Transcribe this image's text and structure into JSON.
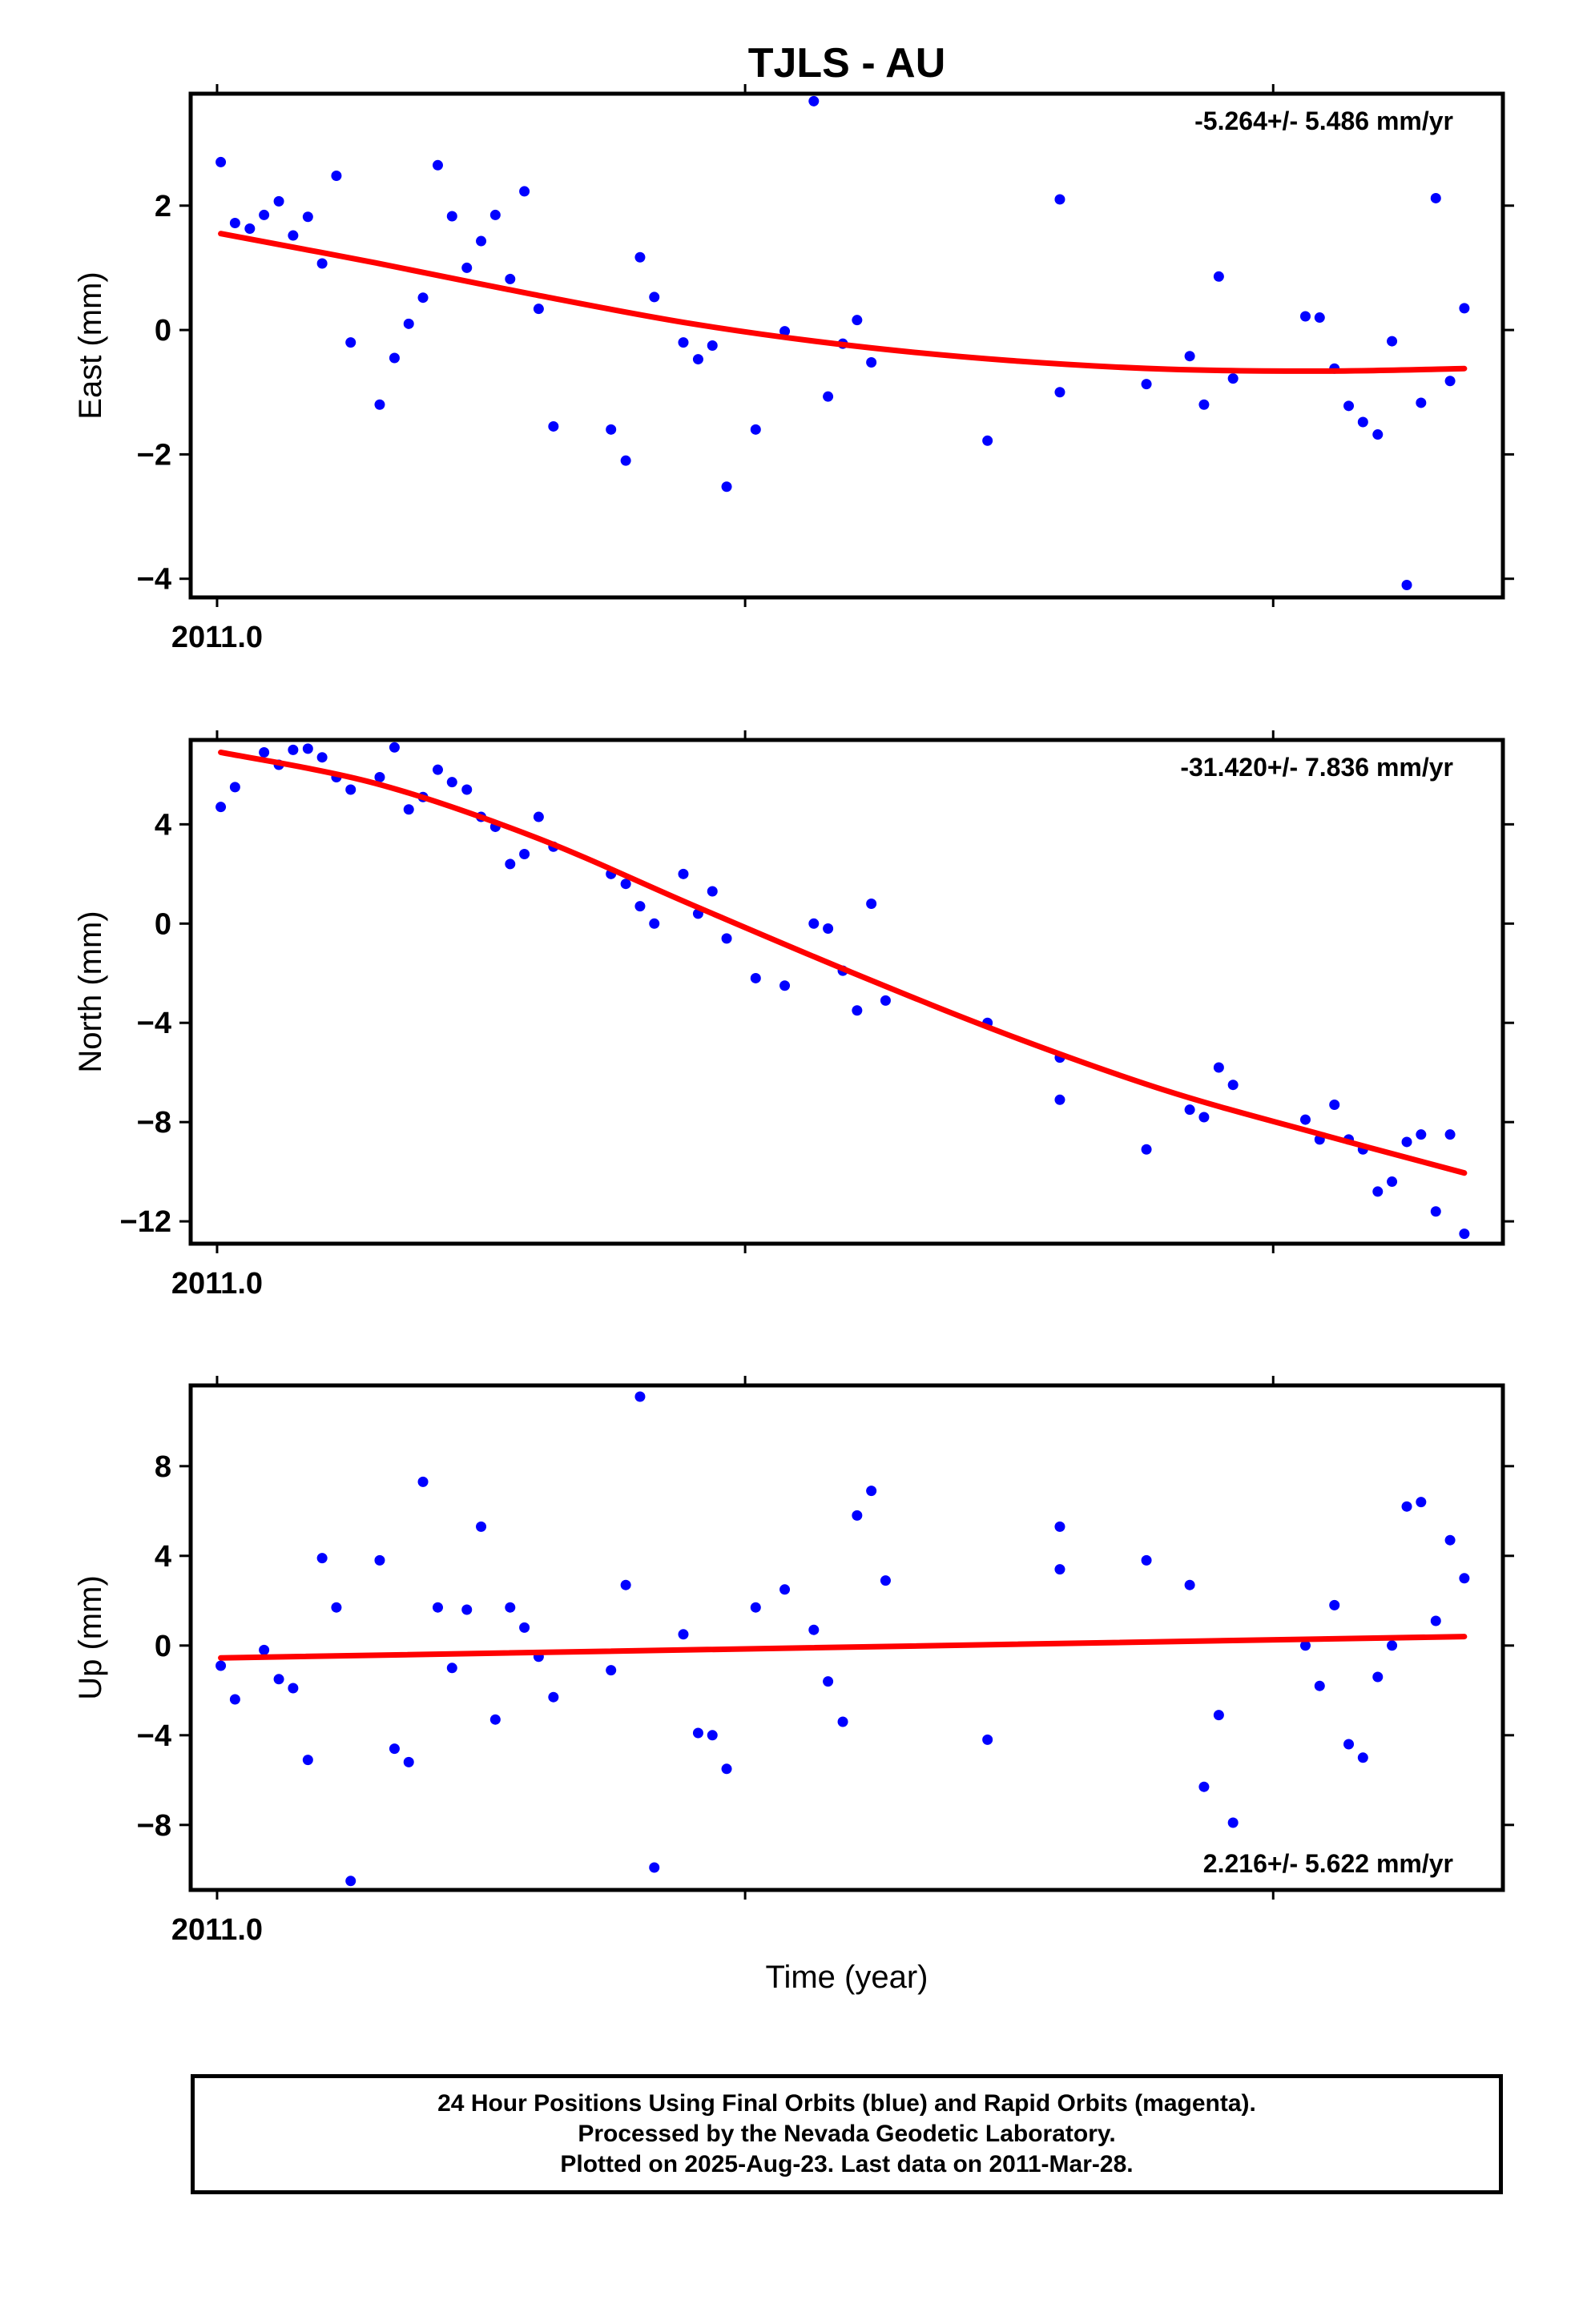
{
  "title": "TJLS - AU",
  "colors": {
    "final_orbits": "#0000ff",
    "fit_line": "#ff0000",
    "axes": "#000000"
  },
  "chart_data": [
    {
      "type": "scatter",
      "panel": "east",
      "ylabel": "East (mm)",
      "xtick_label": "2011.0",
      "rate_text": "-5.264+/- 5.486 mm/yr",
      "rate_position": "top-right",
      "ylim": [
        -4.3,
        3.8
      ],
      "yticks": [
        -4,
        -2,
        0,
        2
      ],
      "ytick_labels": [
        "−4",
        "−2",
        "0",
        "2"
      ],
      "xlim": [
        2010.995,
        2011.2435
      ],
      "grid": false,
      "series": [
        {
          "role": "final_orbits",
          "x": [
            2011.0007,
            2011.0034,
            2011.0062,
            2011.0089,
            2011.0117,
            2011.0144,
            2011.0172,
            2011.0199,
            2011.0226,
            2011.0253,
            2011.0308,
            2011.0336,
            2011.0363,
            2011.039,
            2011.0418,
            2011.0445,
            2011.0473,
            2011.05,
            2011.0527,
            2011.0555,
            2011.0582,
            2011.0609,
            2011.0637,
            2011.0746,
            2011.0774,
            2011.0801,
            2011.0828,
            2011.0883,
            2011.0911,
            2011.0938,
            2011.0965,
            2011.102,
            2011.1075,
            2011.113,
            2011.1157,
            2011.1185,
            2011.1212,
            2011.1239,
            2011.1459,
            2011.1596,
            2011.1596,
            2011.176,
            2011.1842,
            2011.1869,
            2011.1897,
            2011.1924,
            2011.2061,
            2011.2088,
            2011.2116,
            2011.2143,
            2011.217,
            2011.2198,
            2011.2225,
            2011.2253,
            2011.228,
            2011.2308,
            2011.2335,
            2011.2362
          ],
          "y": [
            2.7,
            1.72,
            1.63,
            1.85,
            2.07,
            1.52,
            1.82,
            1.07,
            2.48,
            -0.2,
            -1.2,
            -0.45,
            0.1,
            0.52,
            2.65,
            1.83,
            1.0,
            1.43,
            1.85,
            0.82,
            2.23,
            0.34,
            -1.55,
            -1.6,
            -2.1,
            1.17,
            0.53,
            -0.2,
            -0.47,
            -0.25,
            -2.52,
            -1.6,
            -0.02,
            3.68,
            -1.07,
            -0.22,
            0.16,
            -0.52,
            -1.78,
            -1.0,
            2.1,
            -0.87,
            -0.42,
            -1.2,
            0.86,
            -0.78,
            0.22,
            0.2,
            -0.62,
            -1.22,
            -1.48,
            -1.68,
            -0.18,
            -4.1,
            -1.17,
            2.12,
            -0.82,
            0.35
          ]
        }
      ],
      "fit": {
        "x": [
          2011.0007,
          2011.03,
          2011.06,
          2011.09,
          2011.12,
          2011.15,
          2011.18,
          2011.21,
          2011.2362
        ],
        "y": [
          1.55,
          1.08,
          0.57,
          0.1,
          -0.25,
          -0.49,
          -0.63,
          -0.66,
          -0.62
        ]
      }
    },
    {
      "type": "scatter",
      "panel": "north",
      "ylabel": "North (mm)",
      "xtick_label": "2011.0",
      "rate_text": "-31.420+/- 7.836 mm/yr",
      "rate_position": "top-right",
      "ylim": [
        -12.9,
        7.4
      ],
      "yticks": [
        -12,
        -8,
        -4,
        0,
        4
      ],
      "ytick_labels": [
        "−12",
        "−8",
        "−4",
        "0",
        "4"
      ],
      "xlim": [
        2010.995,
        2011.2435
      ],
      "grid": false,
      "series": [
        {
          "role": "final_orbits",
          "x": [
            2011.0007,
            2011.0034,
            2011.0089,
            2011.0117,
            2011.0144,
            2011.0172,
            2011.0199,
            2011.0226,
            2011.0253,
            2011.0308,
            2011.0336,
            2011.0363,
            2011.039,
            2011.0418,
            2011.0445,
            2011.0473,
            2011.05,
            2011.0527,
            2011.0555,
            2011.0582,
            2011.0609,
            2011.0637,
            2011.0746,
            2011.0774,
            2011.0801,
            2011.0828,
            2011.0883,
            2011.0911,
            2011.0938,
            2011.0965,
            2011.102,
            2011.1075,
            2011.113,
            2011.1157,
            2011.1185,
            2011.1212,
            2011.1239,
            2011.1266,
            2011.1459,
            2011.1596,
            2011.1596,
            2011.176,
            2011.1842,
            2011.1869,
            2011.1897,
            2011.1924,
            2011.2061,
            2011.2088,
            2011.2116,
            2011.2143,
            2011.217,
            2011.2198,
            2011.2225,
            2011.2253,
            2011.228,
            2011.2308,
            2011.2335,
            2011.2362
          ],
          "y": [
            4.7,
            5.5,
            6.9,
            6.4,
            7.0,
            7.05,
            6.7,
            5.9,
            5.4,
            5.9,
            7.1,
            4.6,
            5.1,
            6.2,
            5.7,
            5.4,
            4.3,
            3.9,
            2.4,
            2.8,
            4.3,
            3.1,
            2.0,
            1.6,
            0.7,
            0.0,
            2.0,
            0.4,
            1.3,
            -0.6,
            -2.2,
            -2.5,
            0.0,
            -0.2,
            -1.9,
            -3.5,
            0.8,
            -3.1,
            -4.0,
            -5.4,
            -7.1,
            -9.1,
            -7.5,
            -7.8,
            -5.8,
            -6.5,
            -7.9,
            -8.7,
            -7.3,
            -8.7,
            -9.1,
            -10.8,
            -10.4,
            -8.8,
            -8.5,
            -11.6,
            -8.5,
            -12.5
          ]
        }
      ],
      "fit": {
        "x": [
          2011.0007,
          2011.03,
          2011.06,
          2011.09,
          2011.12,
          2011.15,
          2011.18,
          2011.21,
          2011.2362
        ],
        "y": [
          6.9,
          5.65,
          3.5,
          0.75,
          -1.95,
          -4.5,
          -6.75,
          -8.55,
          -10.05
        ]
      }
    },
    {
      "type": "scatter",
      "panel": "up",
      "ylabel": "Up (mm)",
      "xtick_label": "2011.0",
      "xlabel": "Time (year)",
      "rate_text": "2.216+/- 5.622 mm/yr",
      "rate_position": "bottom-right",
      "ylim": [
        -10.9,
        11.6
      ],
      "yticks": [
        -8,
        -4,
        0,
        4,
        8
      ],
      "ytick_labels": [
        "−8",
        "−4",
        "0",
        "4",
        "8"
      ],
      "xlim": [
        2010.995,
        2011.2435
      ],
      "grid": false,
      "series": [
        {
          "role": "final_orbits",
          "x": [
            2011.0007,
            2011.0034,
            2011.0089,
            2011.0117,
            2011.0144,
            2011.0172,
            2011.0199,
            2011.0226,
            2011.0253,
            2011.0308,
            2011.0336,
            2011.0363,
            2011.039,
            2011.0418,
            2011.0445,
            2011.0473,
            2011.05,
            2011.0527,
            2011.0555,
            2011.0582,
            2011.0609,
            2011.0637,
            2011.0746,
            2011.0774,
            2011.0801,
            2011.0828,
            2011.0883,
            2011.0911,
            2011.0938,
            2011.0965,
            2011.102,
            2011.1075,
            2011.113,
            2011.1157,
            2011.1185,
            2011.1212,
            2011.1239,
            2011.1266,
            2011.1459,
            2011.1596,
            2011.1596,
            2011.176,
            2011.1842,
            2011.1869,
            2011.1897,
            2011.1924,
            2011.2061,
            2011.2088,
            2011.2116,
            2011.2143,
            2011.217,
            2011.2198,
            2011.2225,
            2011.2253,
            2011.228,
            2011.2308,
            2011.2335,
            2011.2362
          ],
          "y": [
            -0.9,
            -2.4,
            -0.2,
            -1.5,
            -1.9,
            -5.1,
            3.9,
            1.7,
            -10.5,
            3.8,
            -4.6,
            -5.2,
            7.3,
            1.7,
            -1.0,
            1.6,
            5.3,
            -3.3,
            1.7,
            0.8,
            -0.5,
            -2.3,
            -1.1,
            2.7,
            11.1,
            -9.9,
            0.5,
            -3.9,
            -4.0,
            -5.5,
            1.7,
            2.5,
            0.7,
            -1.6,
            -3.4,
            5.8,
            6.9,
            2.9,
            -4.2,
            3.4,
            5.3,
            3.8,
            2.7,
            -6.3,
            -3.1,
            -7.9,
            0.0,
            -1.8,
            1.8,
            -4.4,
            -5.0,
            -1.4,
            0.0,
            6.2,
            6.4,
            1.1,
            4.7,
            3.0
          ]
        }
      ],
      "fit": {
        "x": [
          2011.0007,
          2011.2362
        ],
        "y": [
          -0.55,
          0.4
        ]
      }
    }
  ],
  "footer": {
    "line1": "24 Hour Positions Using Final Orbits (blue) and Rapid Orbits (magenta).",
    "line2": "Processed by the Nevada Geodetic Laboratory.",
    "line3": "Plotted on 2025-Aug-23. Last data on 2011-Mar-28."
  }
}
